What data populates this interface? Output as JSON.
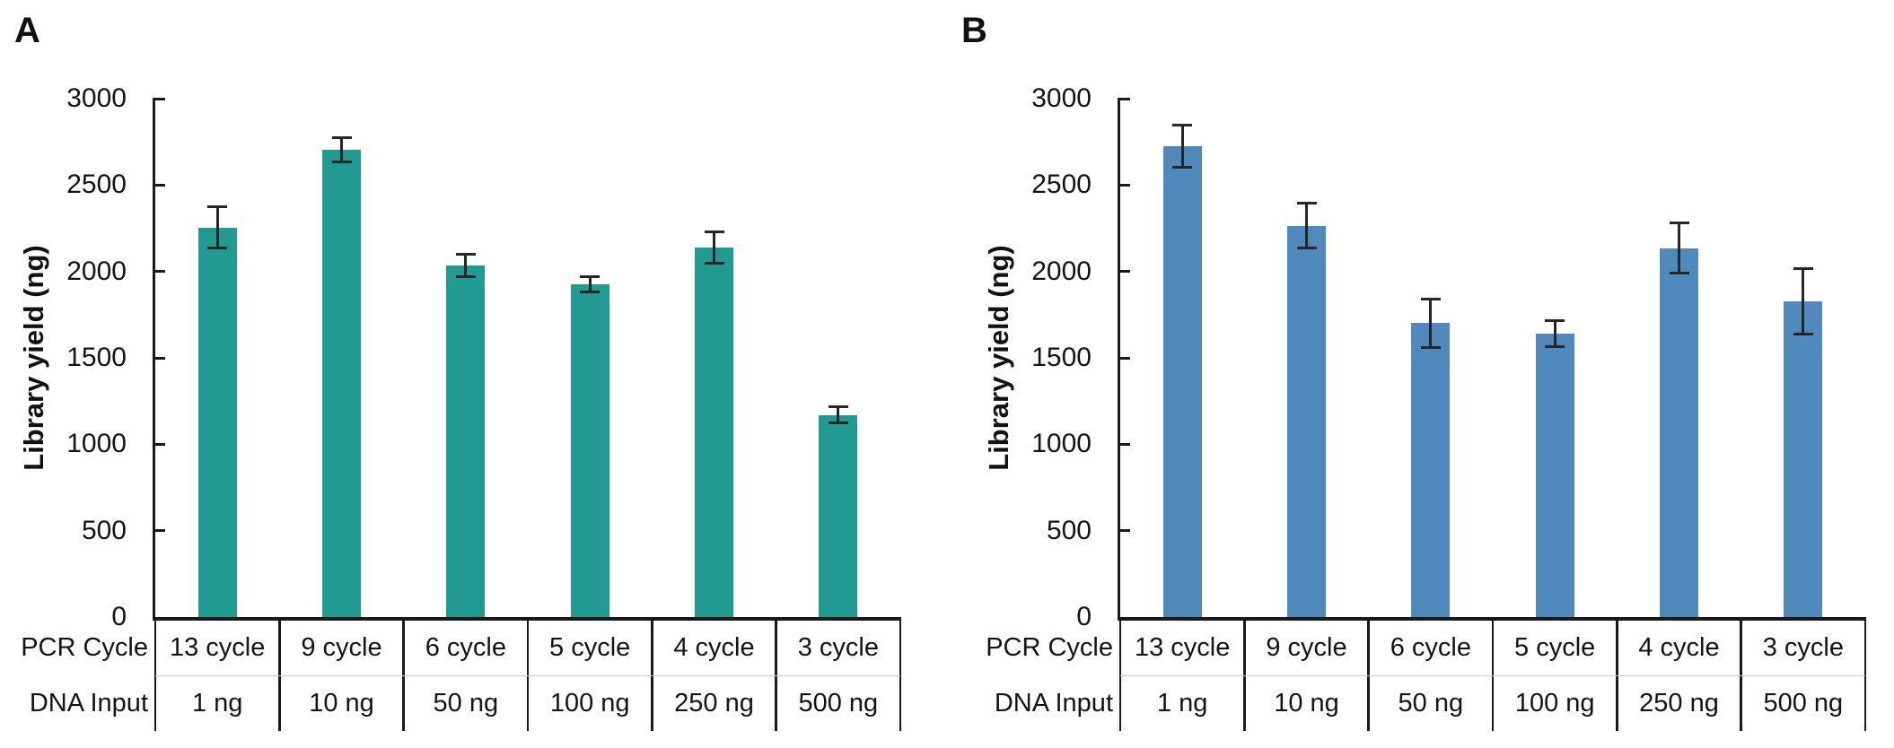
{
  "figure": {
    "background": "#ffffff",
    "axis_color": "#1a1a1a",
    "text_color": "#141414",
    "row_separator_color": "#cccccc"
  },
  "chart_data": [
    {
      "type": "bar",
      "panel_label": "A",
      "title": "",
      "ylabel": "Library yield (ng)",
      "xlabel": "",
      "ylim": [
        0,
        3000
      ],
      "yticks": [
        0,
        500,
        1000,
        1500,
        2000,
        2500,
        3000
      ],
      "grid": false,
      "legend": null,
      "bar_color": "#219a91",
      "error_color": "#262626",
      "x_table": {
        "rows": [
          {
            "label": "PCR Cycle",
            "values": [
              "13 cycle",
              "9 cycle",
              "6 cycle",
              "5 cycle",
              "4 cycle",
              "3 cycle"
            ]
          },
          {
            "label": "DNA Input",
            "values": [
              "1 ng",
              "10 ng",
              "50 ng",
              "100 ng",
              "250 ng",
              "500 ng"
            ]
          }
        ]
      },
      "values": [
        2255,
        2705,
        2035,
        1925,
        2140,
        1170
      ],
      "errors": [
        120,
        70,
        65,
        45,
        90,
        45
      ]
    },
    {
      "type": "bar",
      "panel_label": "B",
      "title": "",
      "ylabel": "Library yield (ng)",
      "xlabel": "",
      "ylim": [
        0,
        3000
      ],
      "yticks": [
        0,
        500,
        1000,
        1500,
        2000,
        2500,
        3000
      ],
      "grid": false,
      "legend": null,
      "bar_color": "#508abd",
      "error_color": "#262626",
      "x_table": {
        "rows": [
          {
            "label": "PCR Cycle",
            "values": [
              "13 cycle",
              "9 cycle",
              "6 cycle",
              "5 cycle",
              "4 cycle",
              "3 cycle"
            ]
          },
          {
            "label": "DNA Input",
            "values": [
              "1 ng",
              "10 ng",
              "50 ng",
              "100 ng",
              "250 ng",
              "500 ng"
            ]
          }
        ]
      },
      "values": [
        2725,
        2265,
        1700,
        1640,
        2135,
        1825
      ],
      "errors": [
        120,
        130,
        140,
        75,
        145,
        190
      ]
    }
  ]
}
